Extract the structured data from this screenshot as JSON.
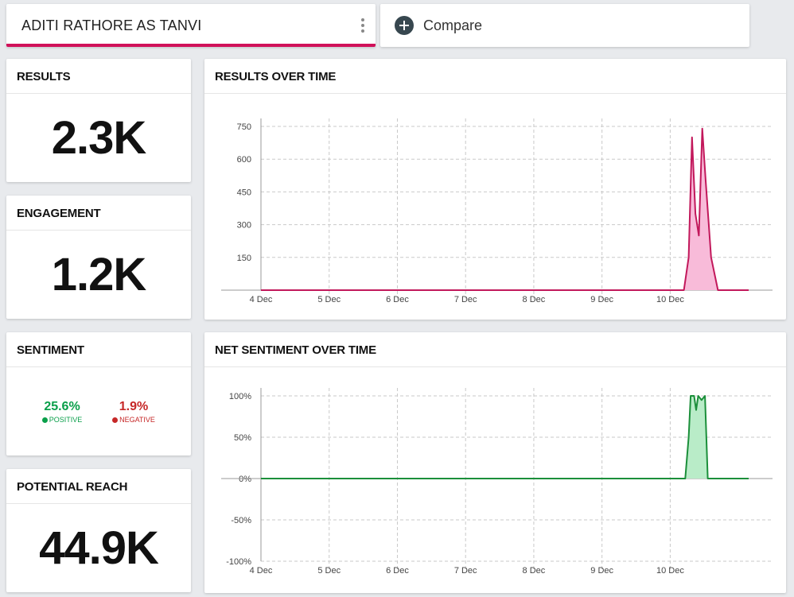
{
  "header": {
    "query_tab": {
      "label": "ADITI RATHORE AS TANVI",
      "menu_icon": "more-vertical-icon"
    },
    "compare_tab": {
      "label": "Compare",
      "icon": "plus-circle-icon"
    }
  },
  "cards": {
    "results": {
      "title": "RESULTS",
      "value": "2.3K"
    },
    "engagement": {
      "title": "ENGAGEMENT",
      "value": "1.2K"
    },
    "sentiment": {
      "title": "SENTIMENT",
      "positive_value": "25.6%",
      "positive_label": "POSITIVE",
      "negative_value": "1.9%",
      "negative_label": "NEGATIVE"
    },
    "reach": {
      "title": "POTENTIAL REACH",
      "value": "44.9K"
    }
  },
  "colors": {
    "accent": "#d0105a",
    "results_line": "#c2185b",
    "results_fill": "#f8bbd9",
    "sentiment_line": "#1b8f3a",
    "sentiment_fill": "#b9ecc8",
    "positive": "#0a9f4a",
    "negative": "#c62828"
  },
  "chart_data": [
    {
      "id": "results",
      "type": "area",
      "title": "RESULTS OVER TIME",
      "xlabel": "",
      "ylabel": "",
      "categories": [
        "4 Dec",
        "5 Dec",
        "6 Dec",
        "7 Dec",
        "8 Dec",
        "9 Dec",
        "10 Dec"
      ],
      "xlim": [
        0,
        7.15
      ],
      "ylim": [
        0,
        750
      ],
      "yticks": [
        150,
        300,
        450,
        600,
        750
      ],
      "ytick_labels": [
        "150",
        "300",
        "450",
        "600",
        "750"
      ],
      "grid": true,
      "series": [
        {
          "name": "Results",
          "x": [
            0,
            6.1,
            6.2,
            6.27,
            6.32,
            6.37,
            6.42,
            6.47,
            6.52,
            6.6,
            6.7,
            7.15
          ],
          "y": [
            0,
            0,
            0,
            150,
            700,
            350,
            250,
            740,
            500,
            150,
            0,
            0
          ]
        }
      ]
    },
    {
      "id": "sentiment",
      "type": "area",
      "title": "NET SENTIMENT OVER TIME",
      "xlabel": "",
      "ylabel": "",
      "categories": [
        "4 Dec",
        "5 Dec",
        "6 Dec",
        "7 Dec",
        "8 Dec",
        "9 Dec",
        "10 Dec"
      ],
      "xlim": [
        0,
        7.15
      ],
      "ylim": [
        -100,
        100
      ],
      "yticks": [
        -100,
        -50,
        0,
        50,
        100
      ],
      "ytick_labels": [
        "-100%",
        "-50%",
        "0%",
        "50%",
        "100%"
      ],
      "grid": true,
      "series": [
        {
          "name": "Net sentiment",
          "x": [
            0,
            6.22,
            6.27,
            6.3,
            6.35,
            6.38,
            6.41,
            6.46,
            6.51,
            6.55,
            6.6,
            7.15
          ],
          "y": [
            0,
            0,
            50,
            100,
            100,
            83,
            100,
            95,
            100,
            0,
            0,
            0
          ]
        }
      ]
    }
  ]
}
